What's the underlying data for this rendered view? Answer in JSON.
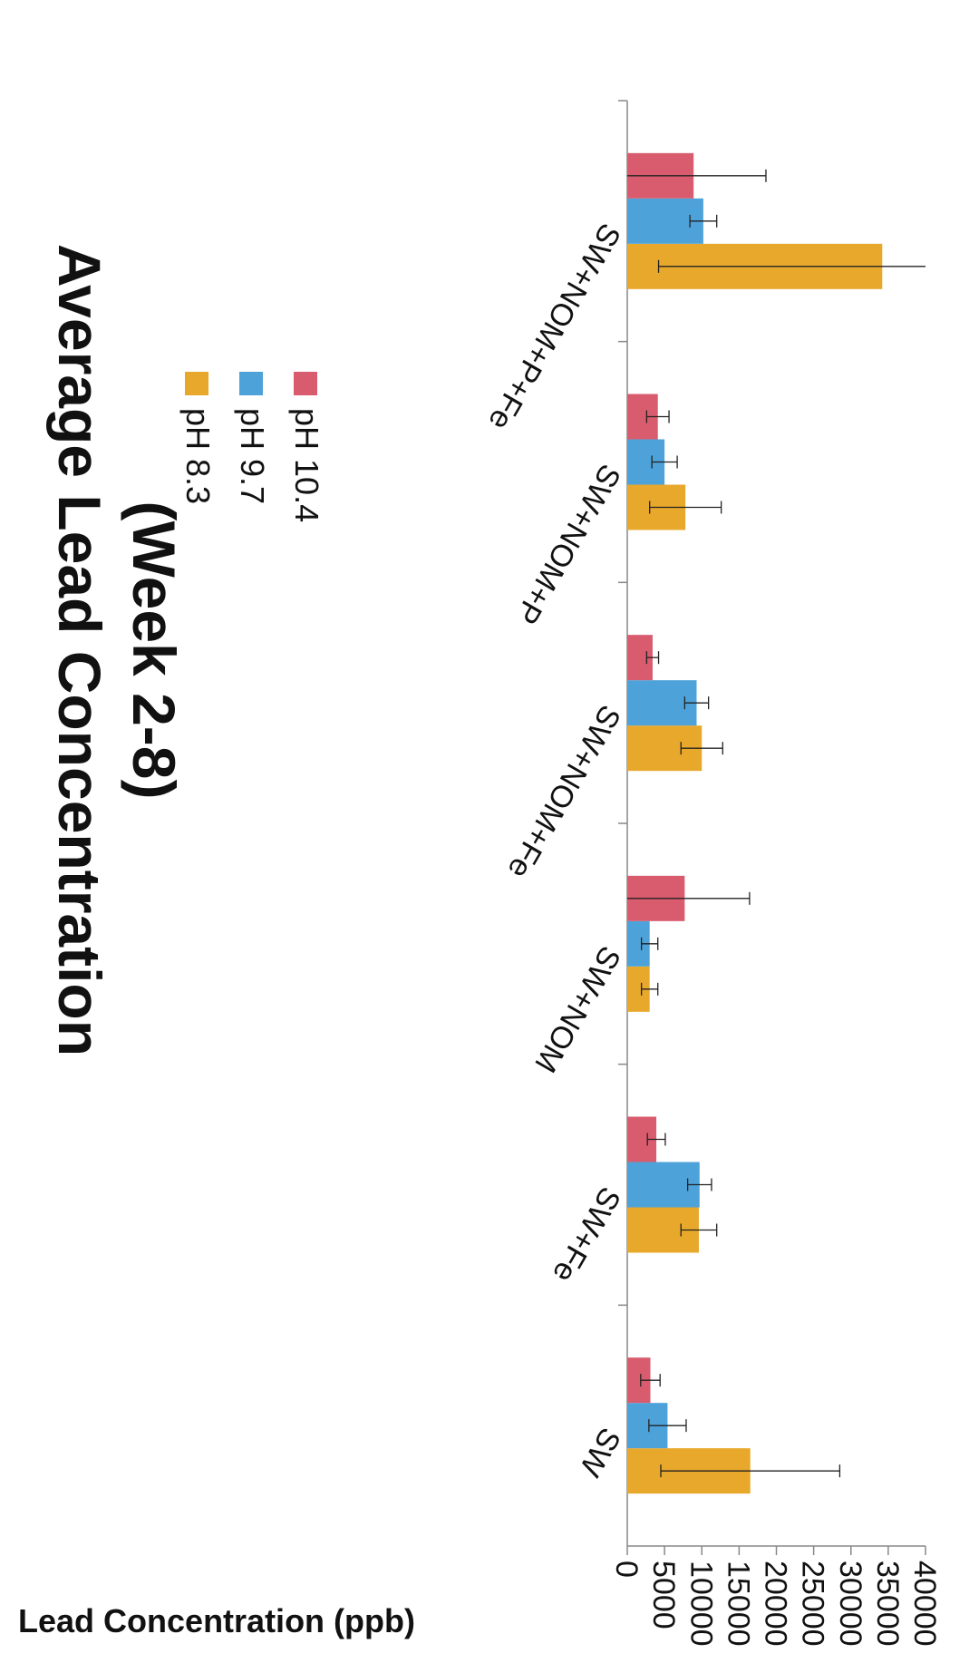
{
  "chart_data": {
    "type": "bar",
    "orientation": "vertical",
    "image_rotation": "rotated 90 degrees clockwise",
    "title": "Average Lead Concentration",
    "subtitle": "(Week 2-8)",
    "ylabel": "Lead Concentration (ppb)",
    "xlabel": "",
    "ylim": [
      0,
      40000
    ],
    "yticks": [
      "0",
      "5000",
      "10000",
      "15000",
      "20000",
      "25000",
      "30000",
      "35000",
      "40000"
    ],
    "grid": false,
    "legend_position": "top-right",
    "categories": [
      "SW",
      "SW+Fe",
      "SW+NOM",
      "SW+NOM+Fe",
      "SW+NOM+P",
      "SW+NOM+P+Fe"
    ],
    "series": [
      {
        "name": "pH 8.3",
        "color": "#e8a82c",
        "values": [
          16500,
          9600,
          3000,
          10000,
          7800,
          34200
        ],
        "errors": [
          12000,
          2400,
          1100,
          2800,
          4800,
          30000
        ]
      },
      {
        "name": "pH 9.7",
        "color": "#4da3d9",
        "values": [
          5400,
          9700,
          3000,
          9300,
          5000,
          10200
        ],
        "errors": [
          2500,
          1600,
          1100,
          1600,
          1700,
          1800
        ]
      },
      {
        "name": "pH 10.4",
        "color": "#d95c6e",
        "values": [
          3100,
          3900,
          7700,
          3400,
          4100,
          8900
        ],
        "errors": [
          1300,
          1200,
          8700,
          800,
          1500,
          9700
        ]
      }
    ]
  }
}
